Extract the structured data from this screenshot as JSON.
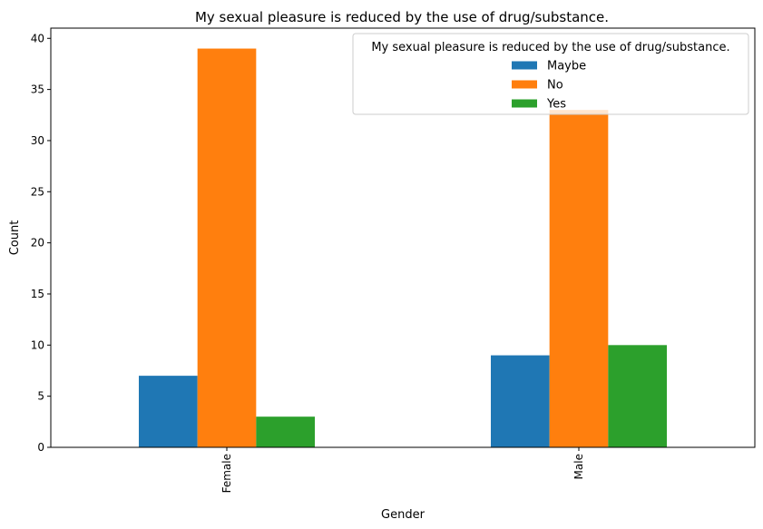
{
  "chart_data": {
    "type": "bar",
    "title": "My sexual pleasure is reduced by the use of  drug/substance.",
    "xlabel": "Gender",
    "ylabel": "Count",
    "categories": [
      "Female",
      "Male"
    ],
    "series": [
      {
        "name": "Maybe",
        "values": [
          7,
          9
        ],
        "color": "#1f77b4"
      },
      {
        "name": "No",
        "values": [
          39,
          33
        ],
        "color": "#ff7f0e"
      },
      {
        "name": "Yes",
        "values": [
          3,
          10
        ],
        "color": "#2ca02c"
      }
    ],
    "ylim": [
      0,
      41
    ],
    "yticks": [
      0,
      5,
      10,
      15,
      20,
      25,
      30,
      35,
      40
    ],
    "grid": false,
    "legend": {
      "title": "My sexual pleasure is reduced by the use of  drug/substance.",
      "position": "top-right"
    }
  }
}
